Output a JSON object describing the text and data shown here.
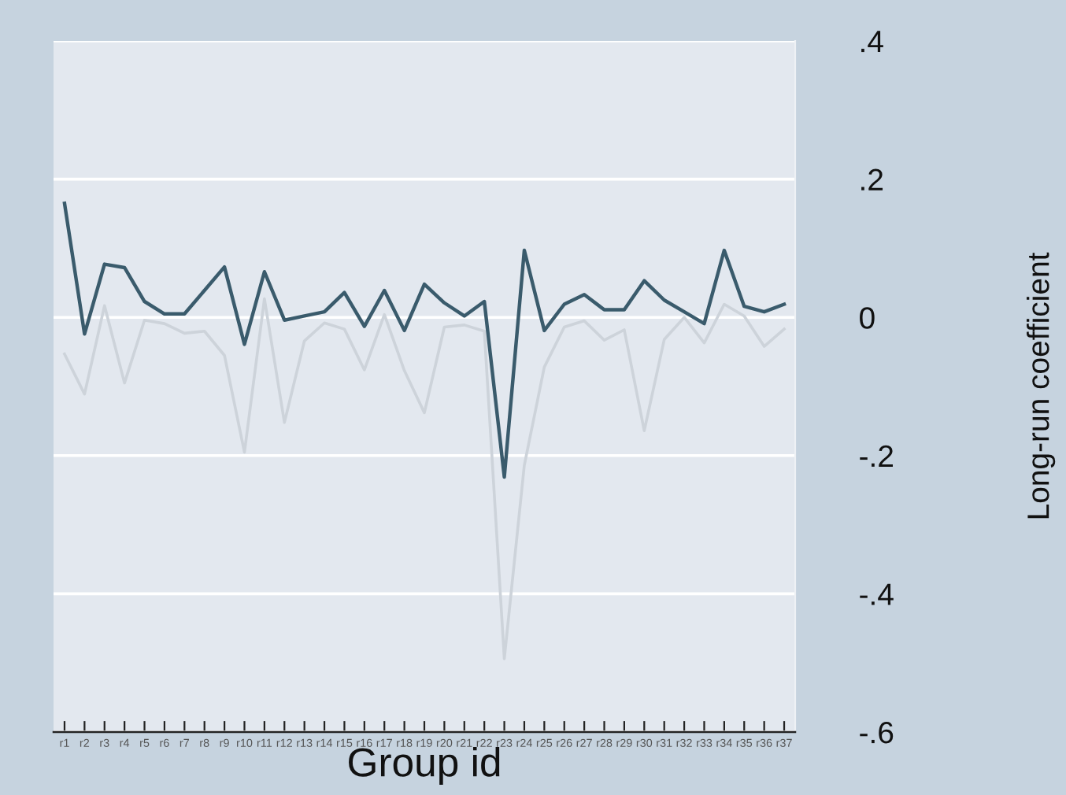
{
  "chart_data": {
    "type": "line",
    "xlabel": "Group id",
    "ylabel": "Long-run coefficient",
    "categories": [
      "r1",
      "r2",
      "r3",
      "r4",
      "r5",
      "r6",
      "r7",
      "r8",
      "r9",
      "r10",
      "r11",
      "r12",
      "r13",
      "r14",
      "r15",
      "r16",
      "r17",
      "r18",
      "r19",
      "r20",
      "r21",
      "r22",
      "r23",
      "r24",
      "r25",
      "r26",
      "r27",
      "r28",
      "r29",
      "r30",
      "r31",
      "r32",
      "r33",
      "r34",
      "r35",
      "r36",
      "r37"
    ],
    "series": [
      {
        "color": "#cdd3da",
        "values": [
          -0.053,
          -0.111,
          0.017,
          -0.095,
          -0.004,
          -0.009,
          -0.023,
          -0.02,
          -0.055,
          -0.195,
          0.027,
          -0.152,
          -0.034,
          -0.008,
          -0.017,
          -0.076,
          0.004,
          -0.077,
          -0.138,
          -0.014,
          -0.011,
          -0.02,
          -0.494,
          -0.214,
          -0.072,
          -0.014,
          -0.005,
          -0.033,
          -0.018,
          -0.164,
          -0.032,
          0.0,
          -0.037,
          0.019,
          0.002,
          -0.042,
          -0.017
        ]
      },
      {
        "color": "#3a5b6c",
        "values": [
          0.165,
          -0.024,
          0.077,
          0.072,
          0.023,
          0.005,
          0.005,
          0.039,
          0.073,
          -0.039,
          0.066,
          -0.004,
          0.002,
          0.008,
          0.036,
          -0.013,
          0.039,
          -0.019,
          0.048,
          0.021,
          0.002,
          0.023,
          -0.231,
          0.097,
          -0.019,
          0.019,
          0.033,
          0.011,
          0.011,
          0.053,
          0.025,
          0.008,
          -0.009,
          0.097,
          0.016,
          0.008,
          0.019
        ]
      }
    ],
    "ylim": [
      -0.6,
      0.4
    ],
    "yticks": [
      {
        "value": 0.4,
        "label": ".4"
      },
      {
        "value": 0.2,
        "label": ".2"
      },
      0,
      {
        "value": -0.2,
        "label": "-.2"
      },
      {
        "value": -0.4,
        "label": "-.4"
      },
      {
        "value": -0.6,
        "label": "-.6"
      }
    ],
    "grid": "y",
    "marker": "none",
    "line_style": "solid"
  }
}
